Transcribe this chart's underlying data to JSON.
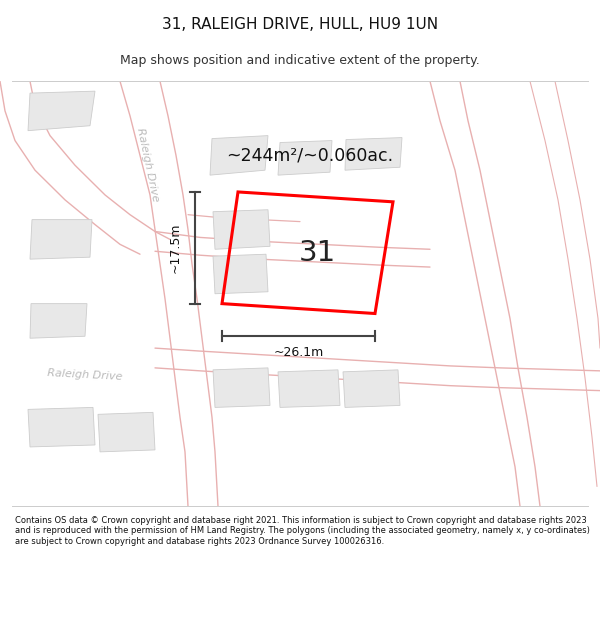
{
  "title": "31, RALEIGH DRIVE, HULL, HU9 1UN",
  "subtitle": "Map shows position and indicative extent of the property.",
  "area_label": "~244m²/~0.060ac.",
  "property_number": "31",
  "width_label": "~26.1m",
  "height_label": "~17.5m",
  "map_bg": "#ffffff",
  "footer_text": "Contains OS data © Crown copyright and database right 2021. This information is subject to Crown copyright and database rights 2023 and is reproduced with the permission of HM Land Registry. The polygons (including the associated geometry, namely x, y co-ordinates) are subject to Crown copyright and database rights 2023 Ordnance Survey 100026316.",
  "road_line_color": "#e8b0b0",
  "plot_outline_color": "#ff0000",
  "building_fill_color": "#e8e8e8",
  "building_edge_color": "#cccccc",
  "dim_line_color": "#444444",
  "street_label_color": "#bbbbbb",
  "street_label": "Raleigh Drive",
  "title_fontsize": 11,
  "subtitle_fontsize": 9
}
